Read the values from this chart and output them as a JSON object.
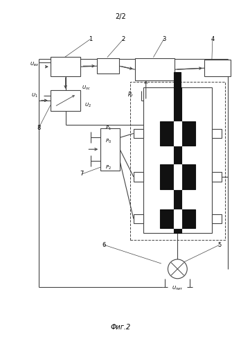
{
  "title": "2/2",
  "caption": "Фиг.2",
  "bg_color": "#ffffff",
  "lc": "#444444",
  "dc": "#111111",
  "fig_width": 3.48,
  "fig_height": 4.99,
  "dpi": 100
}
